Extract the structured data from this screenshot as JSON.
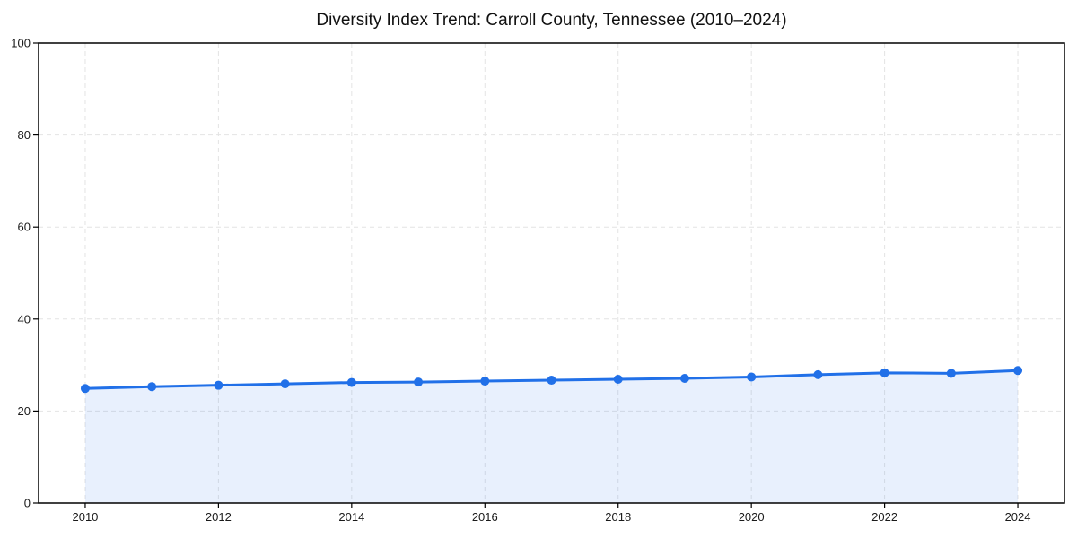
{
  "chart_data": {
    "type": "area",
    "title": "Diversity Index Trend: Carroll County, Tennessee (2010–2024)",
    "xlabel": "",
    "ylabel": "",
    "x": [
      2010,
      2011,
      2012,
      2013,
      2014,
      2015,
      2016,
      2017,
      2018,
      2019,
      2020,
      2021,
      2022,
      2023,
      2024
    ],
    "y": [
      24.9,
      25.3,
      25.6,
      25.9,
      26.2,
      26.3,
      26.5,
      26.7,
      26.9,
      27.1,
      27.4,
      27.9,
      28.3,
      28.2,
      28.8
    ],
    "xlim": [
      2009.3,
      2024.7
    ],
    "ylim": [
      0,
      100
    ],
    "xticks": [
      2010,
      2012,
      2014,
      2016,
      2018,
      2020,
      2022,
      2024
    ],
    "yticks": [
      0,
      20,
      40,
      60,
      80,
      100
    ],
    "grid": true,
    "grid_style": "dashed",
    "legend": "none",
    "marker": "circle",
    "colors": {
      "line": "#2170e8",
      "marker": "#2170e8",
      "fill": "rgba(33, 112, 232, 0.10)",
      "grid": "#e4e4e4",
      "axis": "#000000",
      "tick_label": "#1a1a1a",
      "title": "#111111",
      "background": "#ffffff"
    }
  }
}
